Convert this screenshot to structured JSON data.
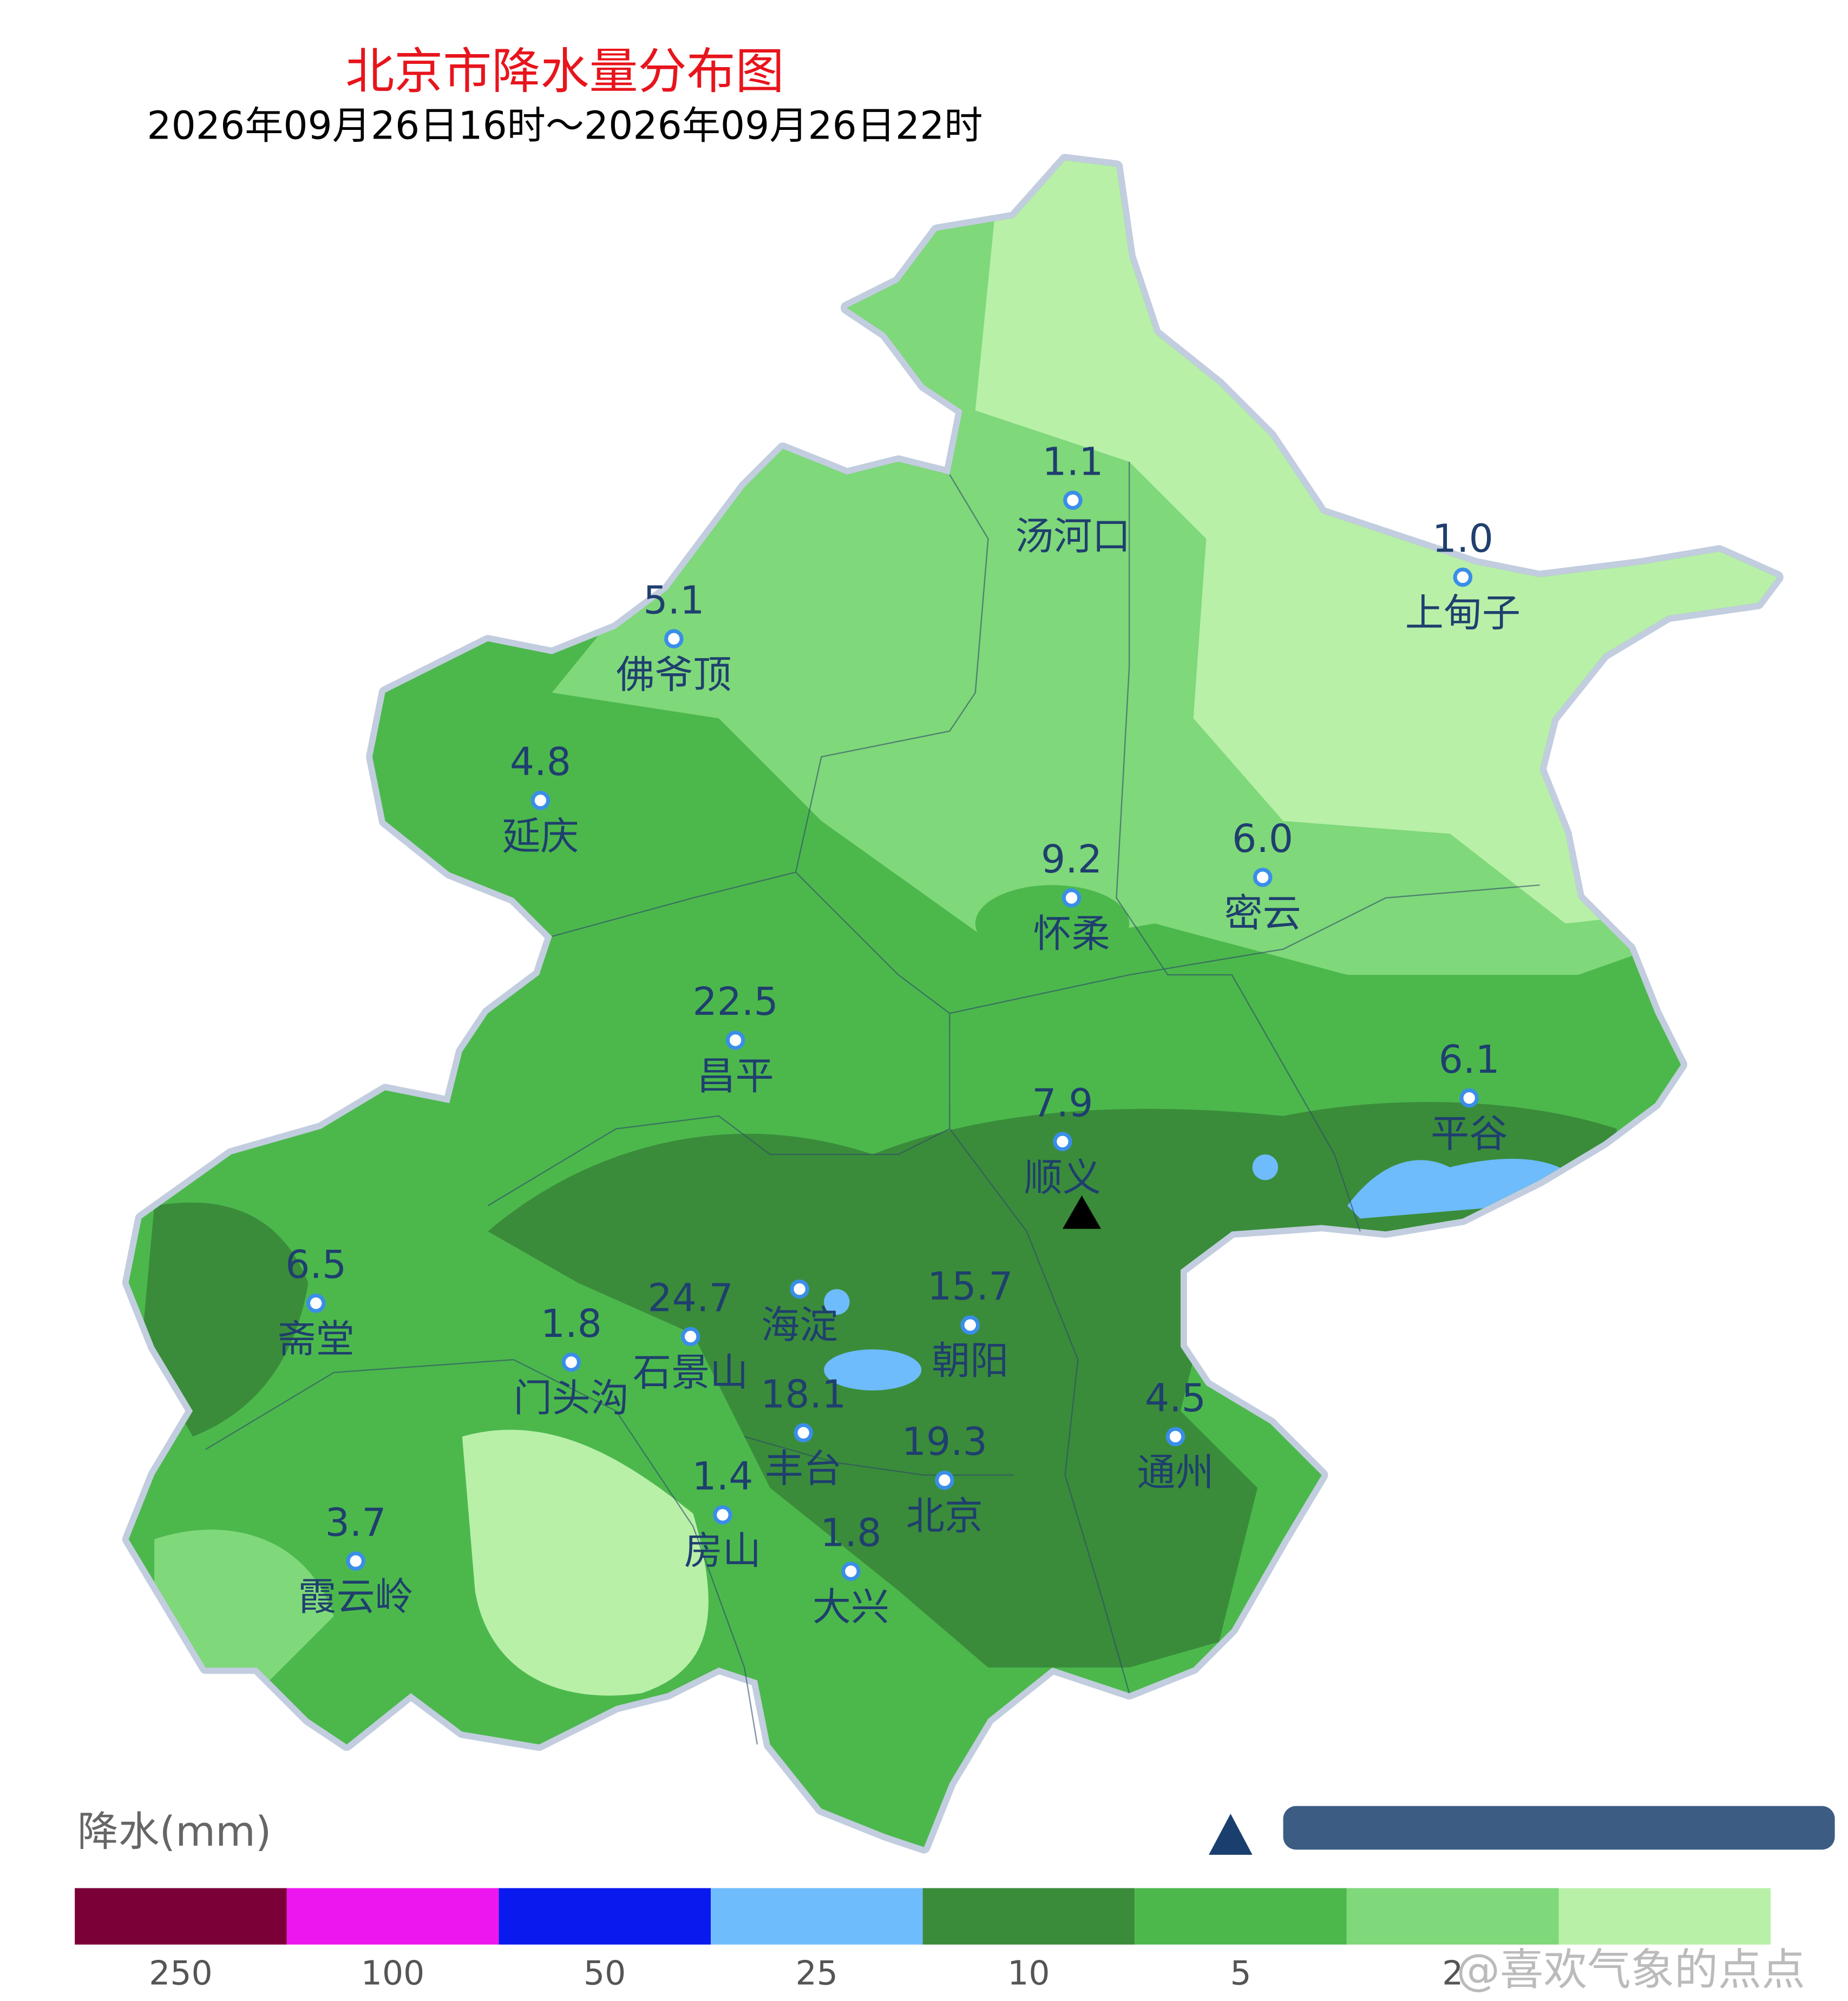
{
  "title": "北京市降水量分布图",
  "subtitle": "2026年09月26日16时～2026年09月26日22时",
  "stations": [
    {
      "name": "汤河口",
      "value": "1.1"
    },
    {
      "name": "上甸子",
      "value": "1.0"
    },
    {
      "name": "佛爷顶",
      "value": "5.1"
    },
    {
      "name": "延庆",
      "value": "4.8"
    },
    {
      "name": "怀柔",
      "value": "9.2"
    },
    {
      "name": "密云",
      "value": "6.0"
    },
    {
      "name": "昌平",
      "value": "22.5"
    },
    {
      "name": "平谷",
      "value": "6.1"
    },
    {
      "name": "顺义",
      "value": "7.9"
    },
    {
      "name": "斋堂",
      "value": "6.5"
    },
    {
      "name": "海淀"
    },
    {
      "name": "朝阳",
      "value": "15.7"
    },
    {
      "name": "门头沟",
      "value": "1.8"
    },
    {
      "name": "石景山",
      "value": "24.7"
    },
    {
      "name": "丰台",
      "value": "18.1"
    },
    {
      "name": "通州",
      "value": "4.5"
    },
    {
      "name": "北京",
      "value": "19.3"
    },
    {
      "name": "房山",
      "value": "1.4"
    },
    {
      "name": "大兴",
      "value": "1.8"
    },
    {
      "name": "霞云岭",
      "value": "3.7"
    }
  ],
  "legend": {
    "title": "降水(mm)",
    "items": [
      {
        "color": "#7a0037",
        "label": "250"
      },
      {
        "color": "#ee16ee",
        "label": "100"
      },
      {
        "color": "#0a1aee",
        "label": "50"
      },
      {
        "color": "#6ebcfc",
        "label": "25"
      },
      {
        "color": "#3a8c3a",
        "label": "10"
      },
      {
        "color": "#4cb84c",
        "label": "5"
      },
      {
        "color": "#7fd87a",
        "label": "2"
      },
      {
        "color": "#b8f0a8"
      }
    ]
  },
  "watermark": "@喜欢气象的点点"
}
